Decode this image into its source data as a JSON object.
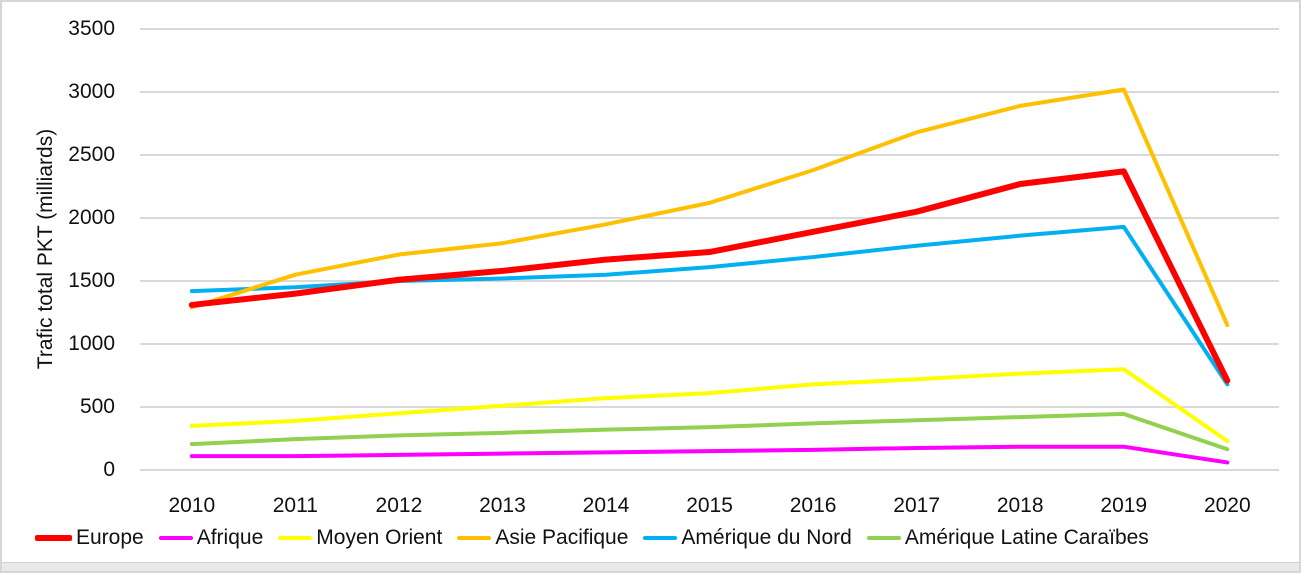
{
  "window": {
    "background": "#ffffff",
    "border_color": "#d6d6d6",
    "bottom_strip_color": "#e9e9e9"
  },
  "chart_data": {
    "type": "line",
    "title": "",
    "xlabel": "",
    "ylabel": "Trafic total PKT (milliards)",
    "ylim": [
      0,
      3500
    ],
    "ytick_step": 500,
    "yticks": [
      "0",
      "500",
      "1000",
      "1500",
      "2000",
      "2500",
      "3000",
      "3500"
    ],
    "grid": "horizontal gridlines only",
    "grid_color": "#d9d9d9",
    "text_color": "#111111",
    "legend_position": "bottom",
    "categories": [
      "2010",
      "2011",
      "2012",
      "2013",
      "2014",
      "2015",
      "2016",
      "2017",
      "2018",
      "2019",
      "2020"
    ],
    "series": [
      {
        "name": "Afrique",
        "color": "#ff00ff",
        "stroke_width": 4,
        "values": [
          110,
          110,
          120,
          130,
          140,
          150,
          160,
          175,
          185,
          185,
          60
        ]
      },
      {
        "name": "Amérique Latine Caraïbes",
        "color": "#92d050",
        "stroke_width": 4,
        "values": [
          205,
          245,
          275,
          295,
          320,
          340,
          370,
          395,
          420,
          445,
          165
        ]
      },
      {
        "name": "Moyen Orient",
        "color": "#ffff00",
        "stroke_width": 4,
        "values": [
          350,
          390,
          450,
          510,
          570,
          610,
          680,
          720,
          765,
          800,
          230
        ]
      },
      {
        "name": "Amérique du Nord",
        "color": "#00b0f0",
        "stroke_width": 4,
        "values": [
          1420,
          1450,
          1500,
          1520,
          1550,
          1610,
          1690,
          1780,
          1860,
          1930,
          680
        ]
      },
      {
        "name": "Asie Pacifique",
        "color": "#ffc000",
        "stroke_width": 4,
        "values": [
          1290,
          1550,
          1710,
          1800,
          1950,
          2120,
          2380,
          2680,
          2890,
          3020,
          1150
        ]
      },
      {
        "name": "Europe",
        "color": "#ff0000",
        "stroke_width": 6,
        "values": [
          1310,
          1400,
          1510,
          1580,
          1670,
          1730,
          1890,
          2050,
          2270,
          2370,
          710
        ]
      }
    ],
    "legend_order": [
      "Europe",
      "Afrique",
      "Moyen Orient",
      "Asie Pacifique",
      "Amérique du Nord",
      "Amérique Latine Caraïbes"
    ]
  }
}
